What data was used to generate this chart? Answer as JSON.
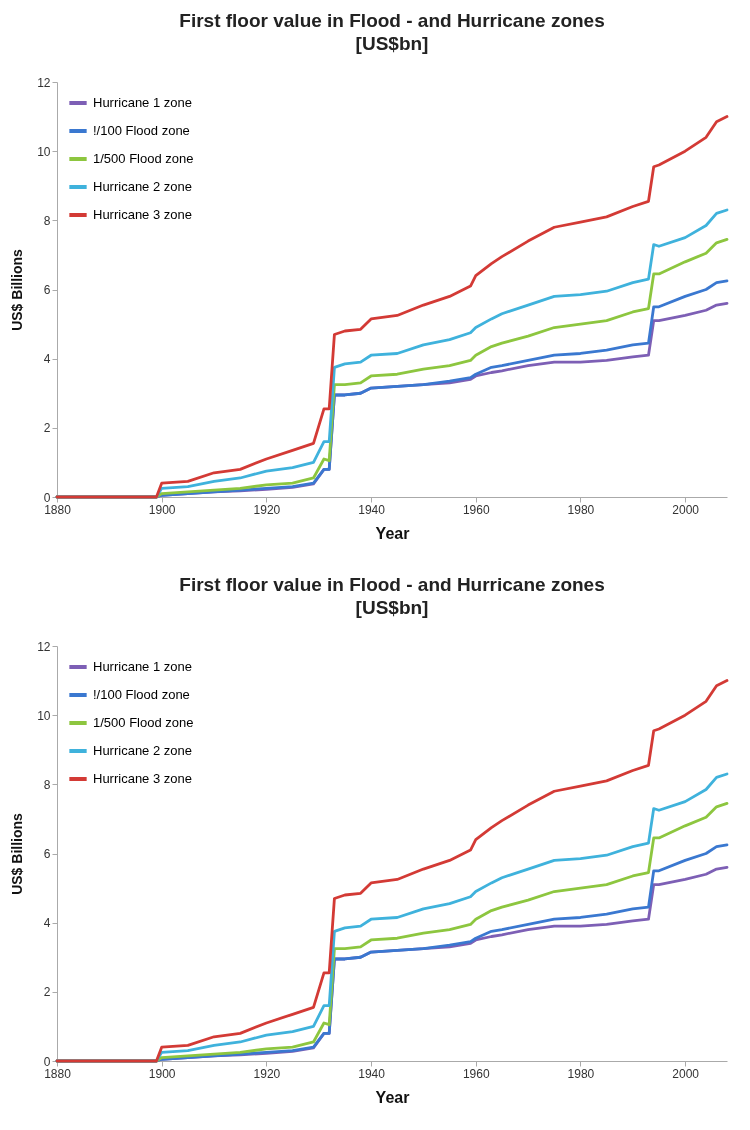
{
  "chart_data": [
    {
      "type": "line",
      "title": "First floor value in Flood - and Hurricane zones",
      "subtitle": "[US$bn]",
      "xlabel": "Year",
      "ylabel": "US$ Billions",
      "x": [
        1880,
        1899,
        1900,
        1905,
        1910,
        1915,
        1920,
        1925,
        1929,
        1931,
        1932,
        1933,
        1935,
        1938,
        1940,
        1945,
        1950,
        1955,
        1959,
        1960,
        1963,
        1965,
        1970,
        1975,
        1980,
        1985,
        1990,
        1993,
        1994,
        1995,
        2000,
        2004,
        2006,
        2008
      ],
      "series": [
        {
          "name": "Hurricane 1 zone",
          "color": "#7d5fb5",
          "values": [
            0,
            0,
            0.05,
            0.1,
            0.15,
            0.18,
            0.22,
            0.28,
            0.38,
            0.8,
            0.8,
            2.95,
            2.95,
            3.0,
            3.15,
            3.2,
            3.25,
            3.3,
            3.4,
            3.5,
            3.6,
            3.65,
            3.8,
            3.9,
            3.9,
            3.95,
            4.05,
            4.1,
            5.1,
            5.1,
            5.25,
            5.4,
            5.55,
            5.6
          ]
        },
        {
          "name": "!/100 Flood zone",
          "color": "#3a78d0",
          "values": [
            0,
            0,
            0.05,
            0.1,
            0.15,
            0.2,
            0.25,
            0.3,
            0.4,
            0.8,
            0.8,
            2.95,
            2.95,
            3.0,
            3.15,
            3.2,
            3.25,
            3.35,
            3.45,
            3.55,
            3.75,
            3.8,
            3.95,
            4.1,
            4.15,
            4.25,
            4.4,
            4.45,
            5.5,
            5.5,
            5.8,
            6.0,
            6.2,
            6.25
          ]
        },
        {
          "name": "1/500 Flood zone",
          "color": "#8dc63f",
          "values": [
            0,
            0,
            0.1,
            0.15,
            0.2,
            0.25,
            0.35,
            0.4,
            0.55,
            1.1,
            1.05,
            3.25,
            3.25,
            3.3,
            3.5,
            3.55,
            3.7,
            3.8,
            3.95,
            4.1,
            4.35,
            4.45,
            4.65,
            4.9,
            5.0,
            5.1,
            5.35,
            5.45,
            6.45,
            6.45,
            6.8,
            7.05,
            7.35,
            7.45
          ]
        },
        {
          "name": "Hurricane 2 zone",
          "color": "#3fb2dc",
          "values": [
            0,
            0,
            0.25,
            0.3,
            0.45,
            0.55,
            0.75,
            0.85,
            1.0,
            1.6,
            1.6,
            3.75,
            3.85,
            3.9,
            4.1,
            4.15,
            4.4,
            4.55,
            4.75,
            4.9,
            5.15,
            5.3,
            5.55,
            5.8,
            5.85,
            5.95,
            6.2,
            6.3,
            7.3,
            7.25,
            7.5,
            7.85,
            8.2,
            8.3
          ]
        },
        {
          "name": "Hurricane 3 zone",
          "color": "#d33a35",
          "values": [
            0,
            0,
            0.4,
            0.45,
            0.7,
            0.8,
            1.1,
            1.35,
            1.55,
            2.55,
            2.55,
            4.7,
            4.8,
            4.85,
            5.15,
            5.25,
            5.55,
            5.8,
            6.1,
            6.4,
            6.75,
            6.95,
            7.4,
            7.8,
            7.95,
            8.1,
            8.4,
            8.55,
            9.55,
            9.6,
            10.0,
            10.4,
            10.85,
            11.0
          ]
        }
      ],
      "xlim": [
        1880,
        2008
      ],
      "xticks": [
        1880,
        1900,
        1920,
        1940,
        1960,
        1980,
        2000
      ],
      "ylim": [
        0,
        12
      ],
      "yticks": [
        0,
        2,
        4,
        6,
        8,
        10,
        12
      ],
      "grid": false,
      "legend": "top left"
    },
    {
      "type": "line",
      "title": "First floor value in Flood - and Hurricane zones",
      "subtitle": "[US$bn]",
      "xlabel": "Year",
      "ylabel": "US$ Billions",
      "x": [
        1880,
        1899,
        1900,
        1905,
        1910,
        1915,
        1920,
        1925,
        1929,
        1931,
        1932,
        1933,
        1935,
        1938,
        1940,
        1945,
        1950,
        1955,
        1959,
        1960,
        1963,
        1965,
        1970,
        1975,
        1980,
        1985,
        1990,
        1993,
        1994,
        1995,
        2000,
        2004,
        2006,
        2008
      ],
      "series": [
        {
          "name": "Hurricane 1 zone",
          "color": "#7d5fb5",
          "values": [
            0,
            0,
            0.05,
            0.1,
            0.15,
            0.18,
            0.22,
            0.28,
            0.38,
            0.8,
            0.8,
            2.95,
            2.95,
            3.0,
            3.15,
            3.2,
            3.25,
            3.3,
            3.4,
            3.5,
            3.6,
            3.65,
            3.8,
            3.9,
            3.9,
            3.95,
            4.05,
            4.1,
            5.1,
            5.1,
            5.25,
            5.4,
            5.55,
            5.6
          ]
        },
        {
          "name": "!/100 Flood zone",
          "color": "#3a78d0",
          "values": [
            0,
            0,
            0.05,
            0.1,
            0.15,
            0.2,
            0.25,
            0.3,
            0.4,
            0.8,
            0.8,
            2.95,
            2.95,
            3.0,
            3.15,
            3.2,
            3.25,
            3.35,
            3.45,
            3.55,
            3.75,
            3.8,
            3.95,
            4.1,
            4.15,
            4.25,
            4.4,
            4.45,
            5.5,
            5.5,
            5.8,
            6.0,
            6.2,
            6.25
          ]
        },
        {
          "name": "1/500 Flood zone",
          "color": "#8dc63f",
          "values": [
            0,
            0,
            0.1,
            0.15,
            0.2,
            0.25,
            0.35,
            0.4,
            0.55,
            1.1,
            1.05,
            3.25,
            3.25,
            3.3,
            3.5,
            3.55,
            3.7,
            3.8,
            3.95,
            4.1,
            4.35,
            4.45,
            4.65,
            4.9,
            5.0,
            5.1,
            5.35,
            5.45,
            6.45,
            6.45,
            6.8,
            7.05,
            7.35,
            7.45
          ]
        },
        {
          "name": "Hurricane 2 zone",
          "color": "#3fb2dc",
          "values": [
            0,
            0,
            0.25,
            0.3,
            0.45,
            0.55,
            0.75,
            0.85,
            1.0,
            1.6,
            1.6,
            3.75,
            3.85,
            3.9,
            4.1,
            4.15,
            4.4,
            4.55,
            4.75,
            4.9,
            5.15,
            5.3,
            5.55,
            5.8,
            5.85,
            5.95,
            6.2,
            6.3,
            7.3,
            7.25,
            7.5,
            7.85,
            8.2,
            8.3
          ]
        },
        {
          "name": "Hurricane 3 zone",
          "color": "#d33a35",
          "values": [
            0,
            0,
            0.4,
            0.45,
            0.7,
            0.8,
            1.1,
            1.35,
            1.55,
            2.55,
            2.55,
            4.7,
            4.8,
            4.85,
            5.15,
            5.25,
            5.55,
            5.8,
            6.1,
            6.4,
            6.75,
            6.95,
            7.4,
            7.8,
            7.95,
            8.1,
            8.4,
            8.55,
            9.55,
            9.6,
            10.0,
            10.4,
            10.85,
            11.0
          ]
        }
      ],
      "xlim": [
        1880,
        2008
      ],
      "xticks": [
        1880,
        1900,
        1920,
        1940,
        1960,
        1980,
        2000
      ],
      "ylim": [
        0,
        12
      ],
      "yticks": [
        0,
        2,
        4,
        6,
        8,
        10,
        12
      ],
      "grid": false,
      "legend": "top left"
    }
  ]
}
